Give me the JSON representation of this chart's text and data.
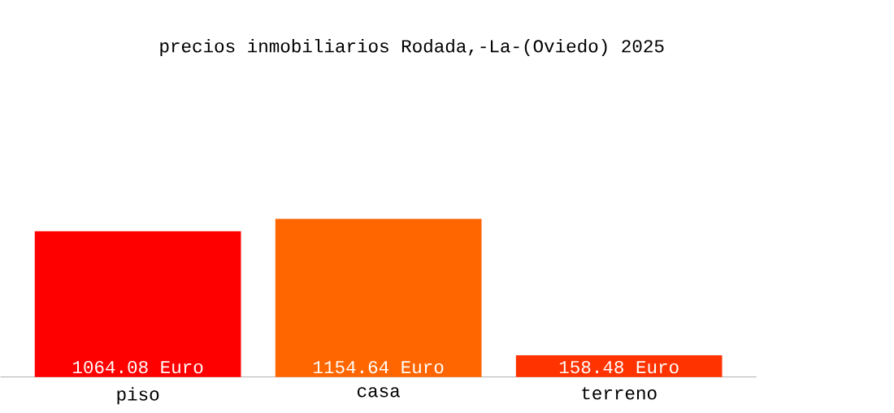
{
  "chart_data": {
    "type": "bar",
    "title": "precios inmobiliarios Rodada,-La-(Oviedo) 2025",
    "categories": [
      "piso",
      "casa",
      "terreno"
    ],
    "values": [
      1064.08,
      1154.64,
      158.48
    ],
    "colors": [
      "#ff0000",
      "#ff6600",
      "#ff3300"
    ],
    "value_labels": [
      "1064.08 Euro",
      "1154.64 Euro",
      "158.48 Euro"
    ]
  }
}
